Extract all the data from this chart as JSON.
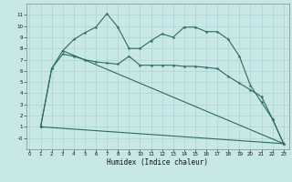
{
  "bg_color": "#c8e8e8",
  "grid_color": "#a8cccc",
  "line_color": "#2a6b60",
  "xlabel": "Humidex (Indice chaleur)",
  "ylim": [
    -1.0,
    12.0
  ],
  "xlim": [
    -0.3,
    23.5
  ],
  "ytick_vals": [
    0,
    1,
    2,
    3,
    4,
    5,
    6,
    7,
    8,
    9,
    10,
    11
  ],
  "ytick_labels": [
    "-0",
    "1",
    "2",
    "3",
    "4",
    "5",
    "6",
    "7",
    "8",
    "9",
    "10",
    "11"
  ],
  "xtick_vals": [
    0,
    1,
    2,
    3,
    4,
    5,
    6,
    7,
    8,
    9,
    10,
    11,
    12,
    13,
    14,
    15,
    16,
    17,
    18,
    19,
    20,
    21,
    22,
    23
  ],
  "line1_x": [
    1,
    2,
    3,
    4,
    5,
    6,
    7,
    8,
    9,
    10,
    11,
    12,
    13,
    14,
    15,
    16,
    17,
    18,
    19,
    20,
    21,
    22,
    23
  ],
  "line1_y": [
    1,
    6.2,
    7.8,
    8.8,
    9.4,
    9.9,
    11.1,
    9.9,
    8.0,
    8.0,
    8.7,
    9.3,
    9.0,
    9.9,
    9.9,
    9.5,
    9.5,
    8.8,
    7.3,
    4.7,
    3.2,
    1.7,
    -0.5
  ],
  "line2_x": [
    1,
    2,
    3,
    4,
    5,
    6,
    7,
    8,
    9,
    10,
    11,
    12,
    13,
    14,
    15,
    16,
    17,
    18,
    19,
    20,
    21,
    22,
    23
  ],
  "line2_y": [
    1,
    6.2,
    7.5,
    7.3,
    7.0,
    6.8,
    6.7,
    6.6,
    7.3,
    6.5,
    6.5,
    6.5,
    6.5,
    6.4,
    6.4,
    6.3,
    6.2,
    5.5,
    4.9,
    4.3,
    3.7,
    1.7,
    -0.5
  ],
  "line3_x": [
    1,
    23
  ],
  "line3_y": [
    1,
    -0.5
  ],
  "line4_x": [
    3,
    23
  ],
  "line4_y": [
    7.8,
    -0.5
  ]
}
